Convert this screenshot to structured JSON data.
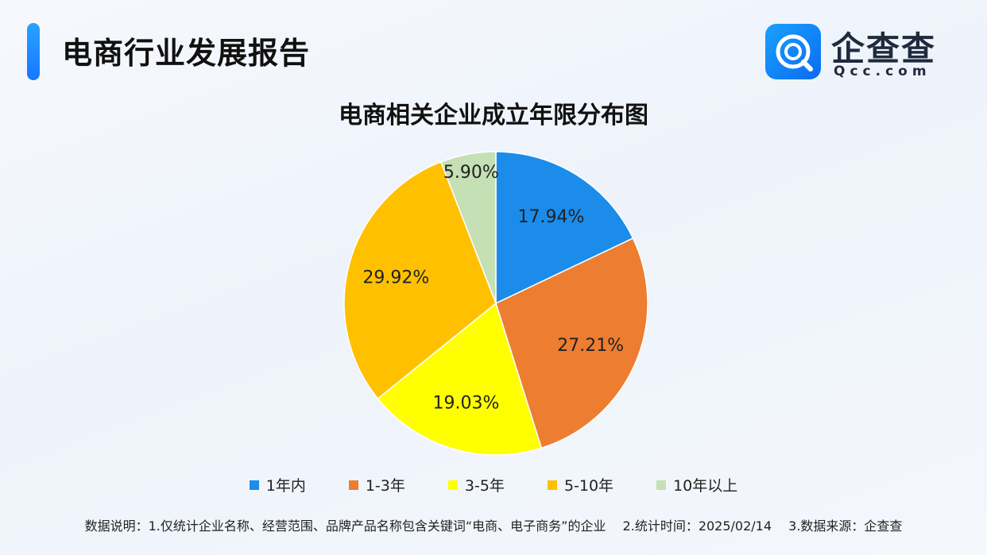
{
  "header": {
    "title": "电商行业发展报告",
    "logo_cn": "企查查",
    "logo_en": "Qcc.com"
  },
  "chart_data": {
    "type": "pie",
    "title": "电商相关企业成立年限分布图",
    "categories": [
      "1年内",
      "1-3年",
      "3-5年",
      "5-10年",
      "10年以上"
    ],
    "values": [
      17.94,
      27.21,
      19.03,
      29.92,
      5.9
    ],
    "labels": [
      "17.94%",
      "27.21%",
      "19.03%",
      "29.92%",
      "5.90%"
    ],
    "colors": [
      "#1b8cea",
      "#ed7d31",
      "#ffff00",
      "#ffc000",
      "#c5e0b4"
    ],
    "legend_position": "bottom",
    "start_angle": "top, clockwise"
  },
  "footnote": {
    "prefix": "数据说明：",
    "note1": "1.仅统计企业名称、经营范围、品牌产品名称包含关键词“电商、电子商务”的企业",
    "note2": "2.统计时间：2025/02/14",
    "note3": "3.数据来源：企查查"
  }
}
